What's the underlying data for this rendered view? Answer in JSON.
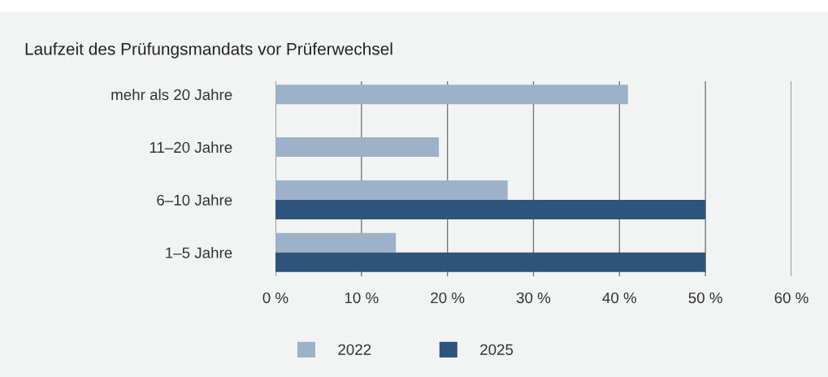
{
  "chart_data": {
    "type": "bar",
    "orientation": "horizontal",
    "title": "Laufzeit des Prüfungsmandats vor Prüferwechsel",
    "categories": [
      "mehr als 20 Jahre",
      "11–20 Jahre",
      "6–10 Jahre",
      "1–5 Jahre"
    ],
    "series": [
      {
        "name": "2022",
        "color": "#9db2c9",
        "values": [
          41,
          19,
          27,
          14
        ]
      },
      {
        "name": "2025",
        "color": "#2f547c",
        "values": [
          null,
          null,
          50,
          50
        ]
      }
    ],
    "xlim": [
      0,
      60
    ],
    "xticks": [
      {
        "value": 0,
        "label": "0 %"
      },
      {
        "value": 10,
        "label": "10 %"
      },
      {
        "value": 20,
        "label": "20 %"
      },
      {
        "value": 30,
        "label": "30 %"
      },
      {
        "value": 40,
        "label": "40 %"
      },
      {
        "value": 50,
        "label": "50 %"
      },
      {
        "value": 60,
        "label": "60 %"
      }
    ],
    "grid": "x",
    "legend": "bottom"
  }
}
